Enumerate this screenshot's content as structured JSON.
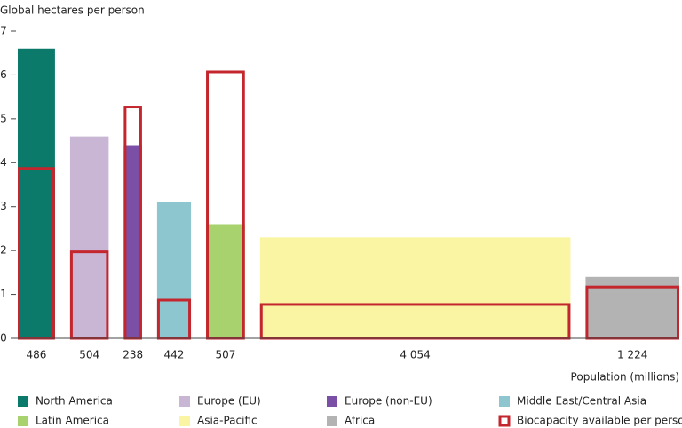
{
  "chart_data": {
    "type": "variable-width-bar",
    "y_label": "Global hectares per person",
    "x_label": "Population (millions)",
    "categories": [
      "North America",
      "Europe (EU)",
      "Europe (non-EU)",
      "Middle East/Central Asia",
      "Latin America",
      "Asia-Pacific",
      "Africa"
    ],
    "colors": [
      "#0b7a6b",
      "#c9b5d4",
      "#7b4fa6",
      "#8ec6cf",
      "#a7d26e",
      "#f9f5a3",
      "#b3b3b3"
    ],
    "populations": [
      486,
      504,
      238,
      442,
      507,
      {
        "value": 4054,
        "label": "4 054"
      },
      {
        "value": 1224,
        "label": "1 224"
      }
    ],
    "footprint": [
      6.6,
      4.6,
      4.4,
      3.1,
      2.6,
      2.3,
      1.4
    ],
    "biocapacity": {
      "name": "Biocapacity available per person",
      "color": "#c4262e",
      "values": [
        3.9,
        2.0,
        5.3,
        0.9,
        6.1,
        0.8,
        1.2
      ]
    },
    "ylim": [
      0,
      7
    ],
    "yticks": [
      0,
      1,
      2,
      3,
      4,
      5,
      6,
      7
    ]
  }
}
